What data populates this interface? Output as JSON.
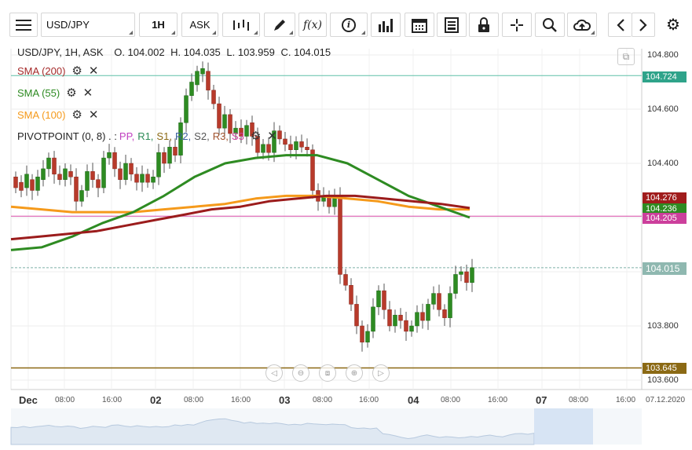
{
  "toolbar": {
    "menu_icon": "hamburger-menu-icon",
    "symbol": "USD/JPY",
    "timeframe": "1H",
    "price_type": "ASK",
    "icons": [
      "indicators-icon",
      "drawing-pen-icon",
      "function-icon",
      "info-icon",
      "bar-chart-icon",
      "calendar-icon",
      "layout-icon",
      "lock-icon",
      "crosshair-icon",
      "zoom-icon",
      "cloud-upload-icon",
      "arrow-left-icon",
      "arrow-right-icon",
      "settings-gear-icon"
    ],
    "function_label": "f(x)",
    "info_label": "i"
  },
  "ohlc": {
    "symbol_line": "USD/JPY, 1H, ASK",
    "o": "O. 104.002",
    "h": "H. 104.035",
    "l": "L. 103.959",
    "c": "C. 104.015"
  },
  "indicators": [
    {
      "label": "SMA (200)",
      "color": "#a52a2a"
    },
    {
      "label": "SMA (55)",
      "color": "#2e8b22"
    },
    {
      "label": "SMA (100)",
      "color": "#f59a1b"
    }
  ],
  "pivot": {
    "prefix": "PIVOTPOINT (0, 8) . : ",
    "items": [
      {
        "label": "PP,",
        "color": "#c040c0"
      },
      {
        "label": "R1,",
        "color": "#2e8b57"
      },
      {
        "label": "S1,",
        "color": "#8b6914"
      },
      {
        "label": "R2,",
        "color": "#3a5fa0"
      },
      {
        "label": "S2,",
        "color": "#555555"
      },
      {
        "label": "R3,",
        "color": "#a0522d"
      },
      {
        "label": "S3",
        "color": "#d040a0"
      }
    ]
  },
  "price_axis": {
    "labels": [
      "104.800",
      "104.600",
      "104.400",
      "103.800",
      "103.600"
    ]
  },
  "price_tags": [
    {
      "value": "104.724",
      "color": "#2fa38a"
    },
    {
      "value": "104.276",
      "color": "#a01c1c"
    },
    {
      "value": "104.236",
      "color": "#2e8b22"
    },
    {
      "value": "104.205",
      "color": "#cc3f9c"
    },
    {
      "value": "104.015",
      "color": "#8fb8b0"
    },
    {
      "value": "103.645",
      "color": "#8b6914"
    }
  ],
  "time_axis": {
    "labels": [
      {
        "text": "Dec",
        "day": true
      },
      {
        "text": "08:00",
        "day": false
      },
      {
        "text": "16:00",
        "day": false
      },
      {
        "text": "02",
        "day": true
      },
      {
        "text": "08:00",
        "day": false
      },
      {
        "text": "16:00",
        "day": false
      },
      {
        "text": "03",
        "day": true
      },
      {
        "text": "08:00",
        "day": false
      },
      {
        "text": "16:00",
        "day": false
      },
      {
        "text": "04",
        "day": true
      },
      {
        "text": "08:00",
        "day": false
      },
      {
        "text": "16:00",
        "day": false
      },
      {
        "text": "07",
        "day": true
      },
      {
        "text": "08:00",
        "day": false
      },
      {
        "text": "16:00",
        "day": false
      },
      {
        "text": "07.12.2020",
        "day": false
      }
    ]
  },
  "navigation": [
    "nav-left-icon",
    "zoom-out-icon",
    "reset-icon",
    "zoom-in-icon",
    "nav-right-icon"
  ],
  "chart_data": {
    "type": "candlestick",
    "symbol": "USD/JPY",
    "timeframe": "1H",
    "ylim": [
      103.6,
      104.85
    ],
    "candles": [
      [
        104.35,
        104.31
      ],
      [
        104.33,
        104.3
      ],
      [
        104.31,
        104.36
      ],
      [
        104.34,
        104.3
      ],
      [
        104.3,
        104.35
      ],
      [
        104.34,
        104.38
      ],
      [
        104.38,
        104.42
      ],
      [
        104.42,
        104.36
      ],
      [
        104.36,
        104.34
      ],
      [
        104.34,
        104.38
      ],
      [
        104.37,
        104.35
      ],
      [
        104.35,
        104.26
      ],
      [
        104.26,
        104.3
      ],
      [
        104.3,
        104.37
      ],
      [
        104.37,
        104.34
      ],
      [
        104.34,
        104.31
      ],
      [
        104.31,
        104.42
      ],
      [
        104.42,
        104.44
      ],
      [
        104.44,
        104.38
      ],
      [
        104.38,
        104.34
      ],
      [
        104.34,
        104.4
      ],
      [
        104.4,
        104.36
      ],
      [
        104.36,
        104.33
      ],
      [
        104.33,
        104.36
      ],
      [
        104.36,
        104.33
      ],
      [
        104.33,
        104.35
      ],
      [
        104.35,
        104.44
      ],
      [
        104.44,
        104.4
      ],
      [
        104.4,
        104.46
      ],
      [
        104.46,
        104.43
      ],
      [
        104.43,
        104.55
      ],
      [
        104.55,
        104.65
      ],
      [
        104.65,
        104.7
      ],
      [
        104.69,
        104.74
      ],
      [
        104.73,
        104.75
      ],
      [
        104.74,
        104.67
      ],
      [
        104.67,
        104.62
      ],
      [
        104.62,
        104.53
      ],
      [
        104.53,
        104.58
      ],
      [
        104.58,
        104.51
      ],
      [
        104.51,
        104.53
      ],
      [
        104.53,
        104.5
      ],
      [
        104.5,
        104.54
      ],
      [
        104.55,
        104.5
      ],
      [
        104.5,
        104.44
      ],
      [
        104.44,
        104.47
      ],
      [
        104.47,
        104.44
      ],
      [
        104.44,
        104.52
      ],
      [
        104.52,
        104.49
      ],
      [
        104.49,
        104.47
      ],
      [
        104.47,
        104.45
      ],
      [
        104.45,
        104.48
      ],
      [
        104.48,
        104.46
      ],
      [
        104.46,
        104.45
      ],
      [
        104.45,
        104.3
      ],
      [
        104.3,
        104.26
      ],
      [
        104.26,
        104.28
      ],
      [
        104.28,
        104.24
      ],
      [
        104.24,
        104.28
      ],
      [
        104.28,
        103.99
      ],
      [
        103.99,
        103.95
      ],
      [
        103.95,
        103.88
      ],
      [
        103.88,
        103.8
      ],
      [
        103.8,
        103.74
      ],
      [
        103.74,
        103.78
      ],
      [
        103.78,
        103.87
      ],
      [
        103.87,
        103.93
      ],
      [
        103.93,
        103.86
      ],
      [
        103.86,
        103.8
      ],
      [
        103.8,
        103.84
      ],
      [
        103.84,
        103.82
      ],
      [
        103.82,
        103.78
      ],
      [
        103.78,
        103.8
      ],
      [
        103.8,
        103.85
      ],
      [
        103.85,
        103.82
      ],
      [
        103.82,
        103.88
      ],
      [
        103.88,
        103.92
      ],
      [
        103.92,
        103.86
      ],
      [
        103.86,
        103.83
      ],
      [
        103.83,
        103.92
      ],
      [
        103.92,
        103.99
      ],
      [
        103.99,
        104.0
      ],
      [
        104.0,
        103.96
      ],
      [
        103.96,
        104.015
      ]
    ],
    "sma200": [
      104.12,
      104.13,
      104.14,
      104.15,
      104.17,
      104.19,
      104.21,
      104.23,
      104.24,
      104.26,
      104.27,
      104.28,
      104.28,
      104.27,
      104.26,
      104.25,
      104.235
    ],
    "sma55": [
      104.08,
      104.09,
      104.13,
      104.18,
      104.22,
      104.28,
      104.35,
      104.4,
      104.42,
      104.43,
      104.43,
      104.4,
      104.34,
      104.28,
      104.24,
      104.2
    ],
    "sma100": [
      104.24,
      104.23,
      104.22,
      104.22,
      104.22,
      104.23,
      104.24,
      104.25,
      104.27,
      104.28,
      104.28,
      104.27,
      104.26,
      104.24,
      104.23,
      104.23
    ],
    "levels": {
      "r1": 104.724,
      "pp": 104.205,
      "s1": 103.645,
      "last": 104.015
    }
  }
}
